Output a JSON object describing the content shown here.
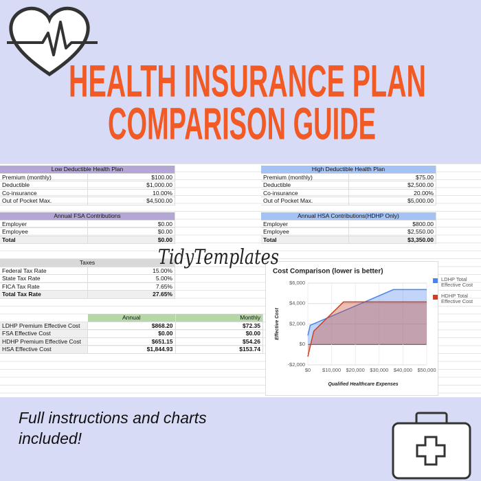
{
  "header": {
    "title_lines": [
      "HEALTH INSURANCE PLAN",
      "COMPARISON GUIDE"
    ]
  },
  "spreadsheet": {
    "ldhp": {
      "title": "Low Deductible Health Plan",
      "rows": [
        [
          "Premium (monthly)",
          "$100.00"
        ],
        [
          "Deductible",
          "$1,000.00"
        ],
        [
          "Co-insurance",
          "10.00%"
        ],
        [
          "Out of Pocket Max.",
          "$4,500.00"
        ]
      ]
    },
    "hdhp": {
      "title": "High Deductible Health Plan",
      "rows": [
        [
          "Premium (monthly)",
          "$75.00"
        ],
        [
          "Deductible",
          "$2,500.00"
        ],
        [
          "Co-insurance",
          "20.00%"
        ],
        [
          "Out of Pocket Max.",
          "$5,000.00"
        ]
      ]
    },
    "fsa": {
      "title": "Annual FSA Contributions",
      "rows": [
        [
          "Employer",
          "$0.00"
        ],
        [
          "Employee",
          "$0.00"
        ],
        [
          "Total",
          "$0.00"
        ]
      ]
    },
    "hsa": {
      "title": "Annual HSA Contributions(HDHP Only)",
      "rows": [
        [
          "Employer",
          "$800.00"
        ],
        [
          "Employee",
          "$2,550.00"
        ],
        [
          "Total",
          "$3,350.00"
        ]
      ]
    },
    "taxes": {
      "title": "Taxes",
      "rows": [
        [
          "Federal Tax Rate",
          "15.00%"
        ],
        [
          "State Tax Rate",
          "5.00%"
        ],
        [
          "FICA Tax Rate",
          "7.65%"
        ],
        [
          "Total Tax Rate",
          "27.65%"
        ]
      ]
    },
    "summary": {
      "columns": [
        "Annual",
        "Monthly"
      ],
      "rows": [
        [
          "LDHP Premium Effective Cost",
          "$868.20",
          "$72.35"
        ],
        [
          "FSA Effective Cost",
          "$0.00",
          "$0.00"
        ],
        [
          "HDHP Premium Effective Cost",
          "$651.15",
          "$54.26"
        ],
        [
          "HSA Effective Cost",
          "$1,844.93",
          "$153.74"
        ]
      ]
    }
  },
  "watermark": "TidyTemplates",
  "chart_data": {
    "type": "area",
    "title": "Cost Comparison (lower is better)",
    "x_label": "Qualified Healthcare Expenses",
    "y_label": "Effective Cost",
    "series": [
      {
        "name": "LDHP Total Effective Cost",
        "color": "#4a86e8",
        "x": [
          0,
          1000,
          36000,
          50000
        ],
        "values": [
          868,
          1868,
          5368,
          5368
        ]
      },
      {
        "name": "HDHP Total Effective Cost",
        "color": "#cc4125",
        "x": [
          0,
          2500,
          15000,
          50000
        ],
        "values": [
          -1194,
          1306,
          4156,
          4156
        ]
      }
    ],
    "xlim": [
      0,
      50000
    ],
    "xticks": [
      {
        "value": 0,
        "label": "$0"
      },
      {
        "value": 10000,
        "label": "$10,000"
      },
      {
        "value": 20000,
        "label": "$20,000"
      },
      {
        "value": 30000,
        "label": "$30,000"
      },
      {
        "value": 40000,
        "label": "$40,000"
      },
      {
        "value": 50000,
        "label": "$50,000"
      }
    ],
    "ylim": [
      -2000,
      6000
    ],
    "yticks": [
      {
        "value": -2000,
        "label": "-$2,000"
      },
      {
        "value": 0,
        "label": "$0"
      },
      {
        "value": 2000,
        "label": "$2,000"
      },
      {
        "value": 4000,
        "label": "$4,000"
      },
      {
        "value": 6000,
        "label": "$6,000"
      }
    ],
    "grid": true,
    "legend": "right"
  },
  "footer": {
    "lines": [
      "Full instructions and charts",
      "included!"
    ]
  }
}
